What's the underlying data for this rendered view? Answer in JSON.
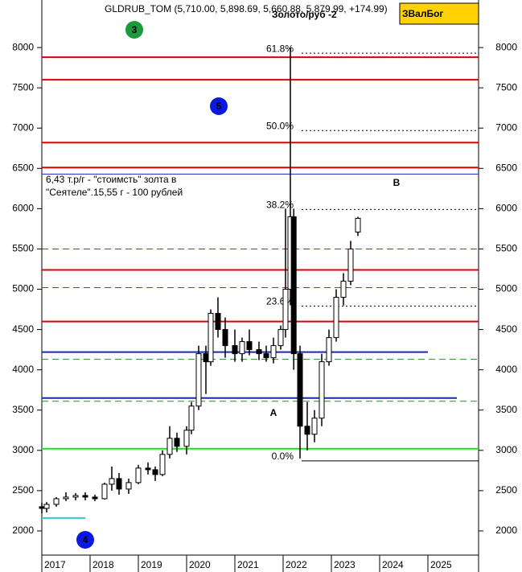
{
  "chart_data": {
    "type": "candlestick",
    "title": "GLDRUB_TOM (5,710.00, 5,898.69, 5,660.88, 5,879.99, +174.99)",
    "subtitle": "Золото/руб -2",
    "badge": "ЗВалБог",
    "x": [
      2017.0,
      2017.1,
      2017.3,
      2017.5,
      2017.7,
      2017.9,
      2018.1,
      2018.3,
      2018.45,
      2018.6,
      2018.8,
      2019.0,
      2019.2,
      2019.35,
      2019.5,
      2019.65,
      2019.8,
      2020.0,
      2020.1,
      2020.25,
      2020.4,
      2020.5,
      2020.65,
      2020.8,
      2021.0,
      2021.15,
      2021.3,
      2021.5,
      2021.65,
      2021.8,
      2021.95,
      2022.05,
      2022.15,
      2022.22,
      2022.35,
      2022.5,
      2022.65,
      2022.8,
      2022.95,
      2023.1,
      2023.25,
      2023.4,
      2023.55
    ],
    "open": [
      2300,
      2280,
      2330,
      2400,
      2420,
      2440,
      2420,
      2400,
      2580,
      2650,
      2520,
      2600,
      2780,
      2760,
      2700,
      2950,
      3150,
      3050,
      3250,
      3550,
      4200,
      4100,
      4700,
      4500,
      4300,
      4200,
      4350,
      4250,
      4200,
      4150,
      4300,
      4500,
      5000,
      5900,
      4200,
      3300,
      3200,
      3400,
      4100,
      4400,
      4900,
      5100,
      5710
    ],
    "high": [
      2350,
      2360,
      2420,
      2480,
      2470,
      2480,
      2450,
      2600,
      2800,
      2720,
      2650,
      2820,
      2850,
      2800,
      3000,
      3300,
      3220,
      3300,
      3600,
      4300,
      4300,
      4750,
      4900,
      4650,
      4500,
      4400,
      4500,
      4350,
      4300,
      4400,
      4550,
      6000,
      8000,
      6000,
      4300,
      3600,
      3500,
      4200,
      4500,
      5000,
      5200,
      5600,
      5898.69
    ],
    "low": [
      2220,
      2230,
      2300,
      2370,
      2380,
      2380,
      2370,
      2390,
      2500,
      2450,
      2460,
      2580,
      2700,
      2620,
      2680,
      2900,
      2980,
      2950,
      3200,
      3500,
      3700,
      4050,
      4400,
      4150,
      4100,
      4100,
      4180,
      4120,
      4100,
      4080,
      4250,
      4400,
      4800,
      4000,
      2900,
      3000,
      3100,
      3300,
      4050,
      4350,
      4800,
      5050,
      5660.88
    ],
    "close": [
      2280,
      2330,
      2400,
      2420,
      2440,
      2420,
      2400,
      2580,
      2650,
      2520,
      2600,
      2780,
      2760,
      2700,
      2950,
      3150,
      3050,
      3250,
      3550,
      4200,
      4100,
      4700,
      4500,
      4300,
      4200,
      4350,
      4250,
      4200,
      4150,
      4300,
      4500,
      5000,
      5900,
      4200,
      3300,
      3200,
      3400,
      4100,
      4400,
      4900,
      5100,
      5500,
      5879.99
    ],
    "xlim": [
      2017,
      2026.05
    ],
    "xticks": [
      2017,
      2018,
      2019,
      2020,
      2021,
      2022,
      2023,
      2024,
      2025
    ],
    "ylim": [
      1700,
      8590
    ],
    "yticks": [
      2000,
      2500,
      3000,
      3500,
      4000,
      4500,
      5000,
      5500,
      6000,
      6500,
      7000,
      7500,
      8000
    ],
    "levels": [
      {
        "value": 7880,
        "color": "#e00000",
        "style": "solid",
        "x": [
          2017,
          2026.05
        ]
      },
      {
        "value": 7600,
        "color": "#e00000",
        "style": "solid",
        "x": [
          2017,
          2026.05
        ]
      },
      {
        "value": 6820,
        "color": "#e00000",
        "style": "solid",
        "x": [
          2017,
          2026.05
        ]
      },
      {
        "value": 6510,
        "color": "#e00000",
        "style": "solid",
        "x": [
          2017,
          2026.05
        ]
      },
      {
        "value": 6430,
        "color": "#2222cc",
        "style": "thin",
        "x": [
          2017,
          2026.05
        ]
      },
      {
        "value": 5500,
        "color": "#b03020",
        "style": "dashed",
        "x": [
          2017,
          2026.05
        ]
      },
      {
        "value": 5240,
        "color": "#e00000",
        "style": "solid",
        "x": [
          2017,
          2026.05
        ]
      },
      {
        "value": 5020,
        "color": "#b03020",
        "style": "dashed",
        "x": [
          2017,
          2026.05
        ]
      },
      {
        "value": 4600,
        "color": "#e00000",
        "style": "solid",
        "x": [
          2017,
          2026.05
        ]
      },
      {
        "value": 4220,
        "color": "#1a2aa8",
        "style": "solid",
        "x": [
          2017,
          2025.0
        ]
      },
      {
        "value": 4130,
        "color": "#2a8a2a",
        "style": "dashed",
        "x": [
          2017,
          2026.05
        ]
      },
      {
        "value": 3650,
        "color": "#1a2aa8",
        "style": "solid",
        "x": [
          2017,
          2025.6
        ]
      },
      {
        "value": 3610,
        "color": "#2a8a2a",
        "style": "dashed",
        "x": [
          2017,
          2026.05
        ]
      },
      {
        "value": 3020,
        "color": "#22dd22",
        "style": "solid",
        "x": [
          2017,
          2026.05
        ]
      },
      {
        "value": 2160,
        "color": "#33c8c8",
        "style": "solid",
        "x": [
          2017,
          2017.9
        ]
      }
    ],
    "fib": [
      {
        "label": "61.8%",
        "value": 7930
      },
      {
        "label": "50.0%",
        "value": 6970
      },
      {
        "label": "38.2%",
        "value": 5990
      },
      {
        "label": "23.6%",
        "value": 4790
      },
      {
        "label": "0.0%",
        "value": 2870
      }
    ],
    "annotations": [
      "3",
      "5",
      "4",
      "A",
      "B",
      "6,43 т.р/г - \"стоимсть\" золта в",
      "\"Сеятеле\".15,55 г - 100 рублей"
    ]
  }
}
